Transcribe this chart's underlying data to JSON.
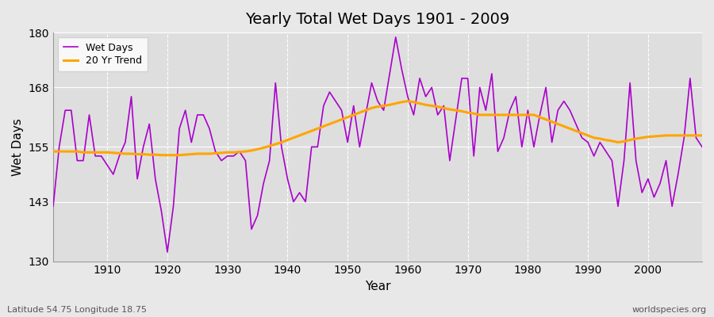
{
  "title": "Yearly Total Wet Days 1901 - 2009",
  "xlabel": "Year",
  "ylabel": "Wet Days",
  "subtitle_left": "Latitude 54.75 Longitude 18.75",
  "subtitle_right": "worldspecies.org",
  "ylim": [
    130,
    180
  ],
  "xlim": [
    1901,
    2009
  ],
  "yticks": [
    130,
    143,
    155,
    168,
    180
  ],
  "xticks": [
    1910,
    1920,
    1930,
    1940,
    1950,
    1960,
    1970,
    1980,
    1990,
    2000
  ],
  "wet_days_color": "#AA00CC",
  "trend_color": "#FFA500",
  "background_color": "#E8E8E8",
  "plot_bg_color": "#DEDEDE",
  "grid_color": "#FFFFFF",
  "wet_days": [
    142,
    155,
    163,
    163,
    152,
    152,
    162,
    153,
    153,
    151,
    149,
    153,
    156,
    166,
    148,
    155,
    160,
    148,
    141,
    132,
    142,
    159,
    163,
    156,
    162,
    162,
    159,
    154,
    152,
    153,
    153,
    154,
    152,
    137,
    140,
    147,
    152,
    169,
    155,
    148,
    143,
    145,
    143,
    155,
    155,
    164,
    167,
    165,
    163,
    156,
    164,
    155,
    162,
    169,
    165,
    163,
    171,
    179,
    172,
    166,
    162,
    170,
    166,
    168,
    162,
    164,
    152,
    161,
    170,
    170,
    153,
    168,
    163,
    171,
    154,
    157,
    163,
    166,
    155,
    163,
    155,
    162,
    168,
    156,
    163,
    165,
    163,
    160,
    157,
    156,
    153,
    156,
    154,
    152,
    142,
    152,
    169,
    152,
    145,
    148,
    144,
    147,
    152,
    142,
    149,
    157,
    170,
    157,
    155
  ],
  "trend": [
    154.0,
    154.0,
    154.0,
    154.0,
    154.0,
    153.8,
    153.8,
    153.8,
    153.8,
    153.8,
    153.7,
    153.6,
    153.5,
    153.5,
    153.4,
    153.4,
    153.3,
    153.3,
    153.2,
    153.2,
    153.2,
    153.2,
    153.3,
    153.4,
    153.5,
    153.5,
    153.5,
    153.6,
    153.7,
    153.8,
    153.8,
    153.9,
    154.0,
    154.2,
    154.5,
    154.8,
    155.2,
    155.6,
    156.0,
    156.5,
    157.0,
    157.5,
    158.0,
    158.5,
    159.0,
    159.5,
    160.0,
    160.5,
    161.0,
    161.5,
    162.0,
    162.5,
    163.0,
    163.5,
    163.8,
    164.0,
    164.2,
    164.5,
    164.8,
    165.0,
    164.8,
    164.5,
    164.2,
    164.0,
    163.8,
    163.5,
    163.2,
    163.0,
    162.8,
    162.5,
    162.3,
    162.0,
    162.0,
    162.0,
    162.0,
    162.0,
    162.0,
    162.0,
    162.0,
    162.0,
    162.0,
    161.5,
    161.0,
    160.5,
    160.0,
    159.5,
    159.0,
    158.5,
    158.0,
    157.5,
    157.0,
    156.8,
    156.5,
    156.3,
    156.0,
    156.2,
    156.5,
    156.8,
    157.0,
    157.2,
    157.3,
    157.4,
    157.5,
    157.5,
    157.5,
    157.5,
    157.5,
    157.5,
    157.5
  ]
}
